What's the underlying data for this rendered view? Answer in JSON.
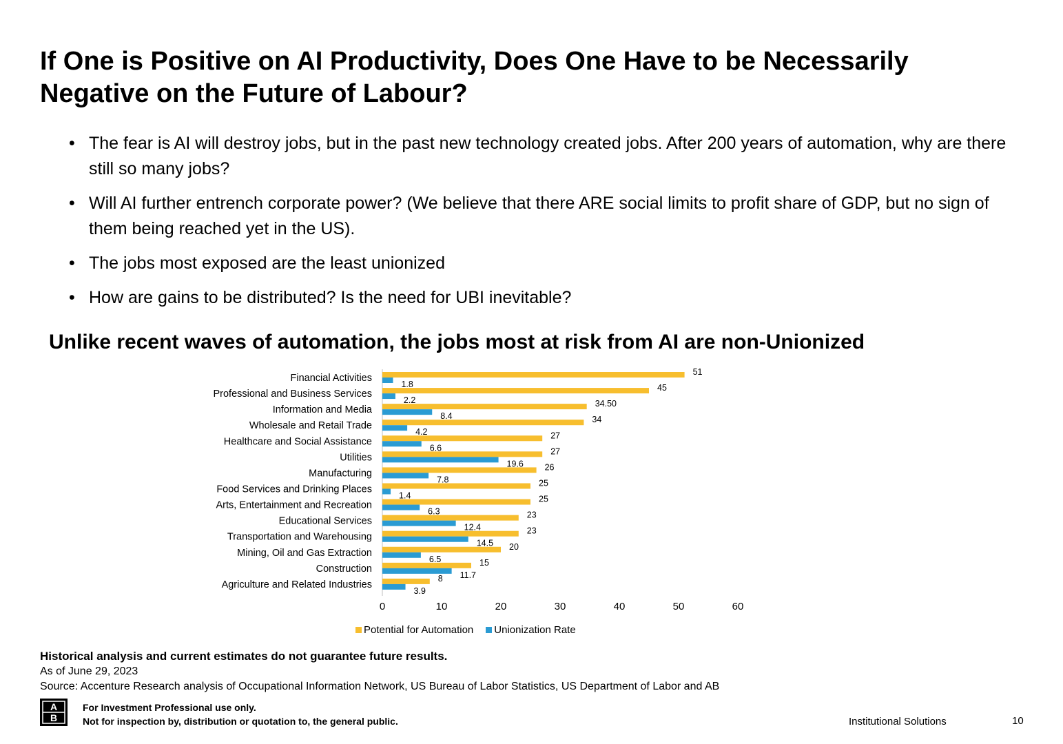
{
  "title": "If One is Positive on AI Productivity, Does One Have to be Necessarily Negative on the Future of Labour?",
  "bullets": [
    "The fear is AI will destroy jobs, but in the past new technology created jobs. After 200 years of automation, why are there still so many jobs?",
    "Will AI further entrench corporate power? (We believe that there ARE social limits to profit share of GDP, but no sign of them being reached yet in the US).",
    "The jobs most exposed are the least unionized",
    "How are gains to be distributed? Is the need for UBI inevitable?"
  ],
  "bullet_symbol": "•",
  "chart_title": "Unlike recent waves of automation, the jobs most at risk from AI are non-Unionized",
  "chart_data": {
    "type": "bar",
    "orientation": "horizontal",
    "categories": [
      "Financial Activities",
      "Professional and Business Services",
      "Information and Media",
      "Wholesale and Retail Trade",
      "Healthcare and Social Assistance",
      "Utilities",
      "Manufacturing",
      "Food Services and Drinking Places",
      "Arts, Entertainment and Recreation",
      "Educational Services",
      "Transportation and Warehousing",
      "Mining, Oil and Gas Extraction",
      "Construction",
      "Agriculture and Related Industries"
    ],
    "series": [
      {
        "name": "Potential for Automation",
        "color": "#F7BE2E",
        "values": [
          51,
          45,
          34.5,
          34,
          27,
          27,
          26,
          25,
          25,
          23,
          23,
          20,
          15,
          8
        ],
        "labels": [
          "51",
          "45",
          "34.50",
          "34",
          "27",
          "27",
          "26",
          "25",
          "25",
          "23",
          "23",
          "20",
          "15",
          "8"
        ]
      },
      {
        "name": "Unionization Rate",
        "color": "#2A9BD3",
        "values": [
          1.8,
          2.2,
          8.4,
          4.2,
          6.6,
          19.6,
          7.8,
          1.4,
          6.3,
          12.4,
          14.5,
          6.5,
          11.7,
          3.9
        ],
        "labels": [
          "1.8",
          "2.2",
          "8.4",
          "4.2",
          "6.6",
          "19.6",
          "7.8",
          "1.4",
          "6.3",
          "12.4",
          "14.5",
          "6.5",
          "11.7",
          "3.9"
        ]
      }
    ],
    "xlim": [
      0,
      60
    ],
    "xticks": [
      0,
      10,
      20,
      30,
      40,
      50,
      60
    ],
    "legend_position": "bottom-center",
    "grid": false
  },
  "disclaimer": "Historical analysis and current estimates do not guarantee future results.",
  "as_of": "As of June 29, 2023",
  "source": "Source:  Accenture Research analysis of Occupational Information Network, US Bureau of Labor Statistics, US Department of Labor and AB",
  "logo_icon": "ab-logo-icon",
  "logo_letters": [
    "A",
    "B"
  ],
  "footer": {
    "line1": "For Investment Professional use only.",
    "line2": "Not for inspection by, distribution or quotation to, the general public.",
    "institutional": "Institutional Solutions",
    "page": "10"
  }
}
